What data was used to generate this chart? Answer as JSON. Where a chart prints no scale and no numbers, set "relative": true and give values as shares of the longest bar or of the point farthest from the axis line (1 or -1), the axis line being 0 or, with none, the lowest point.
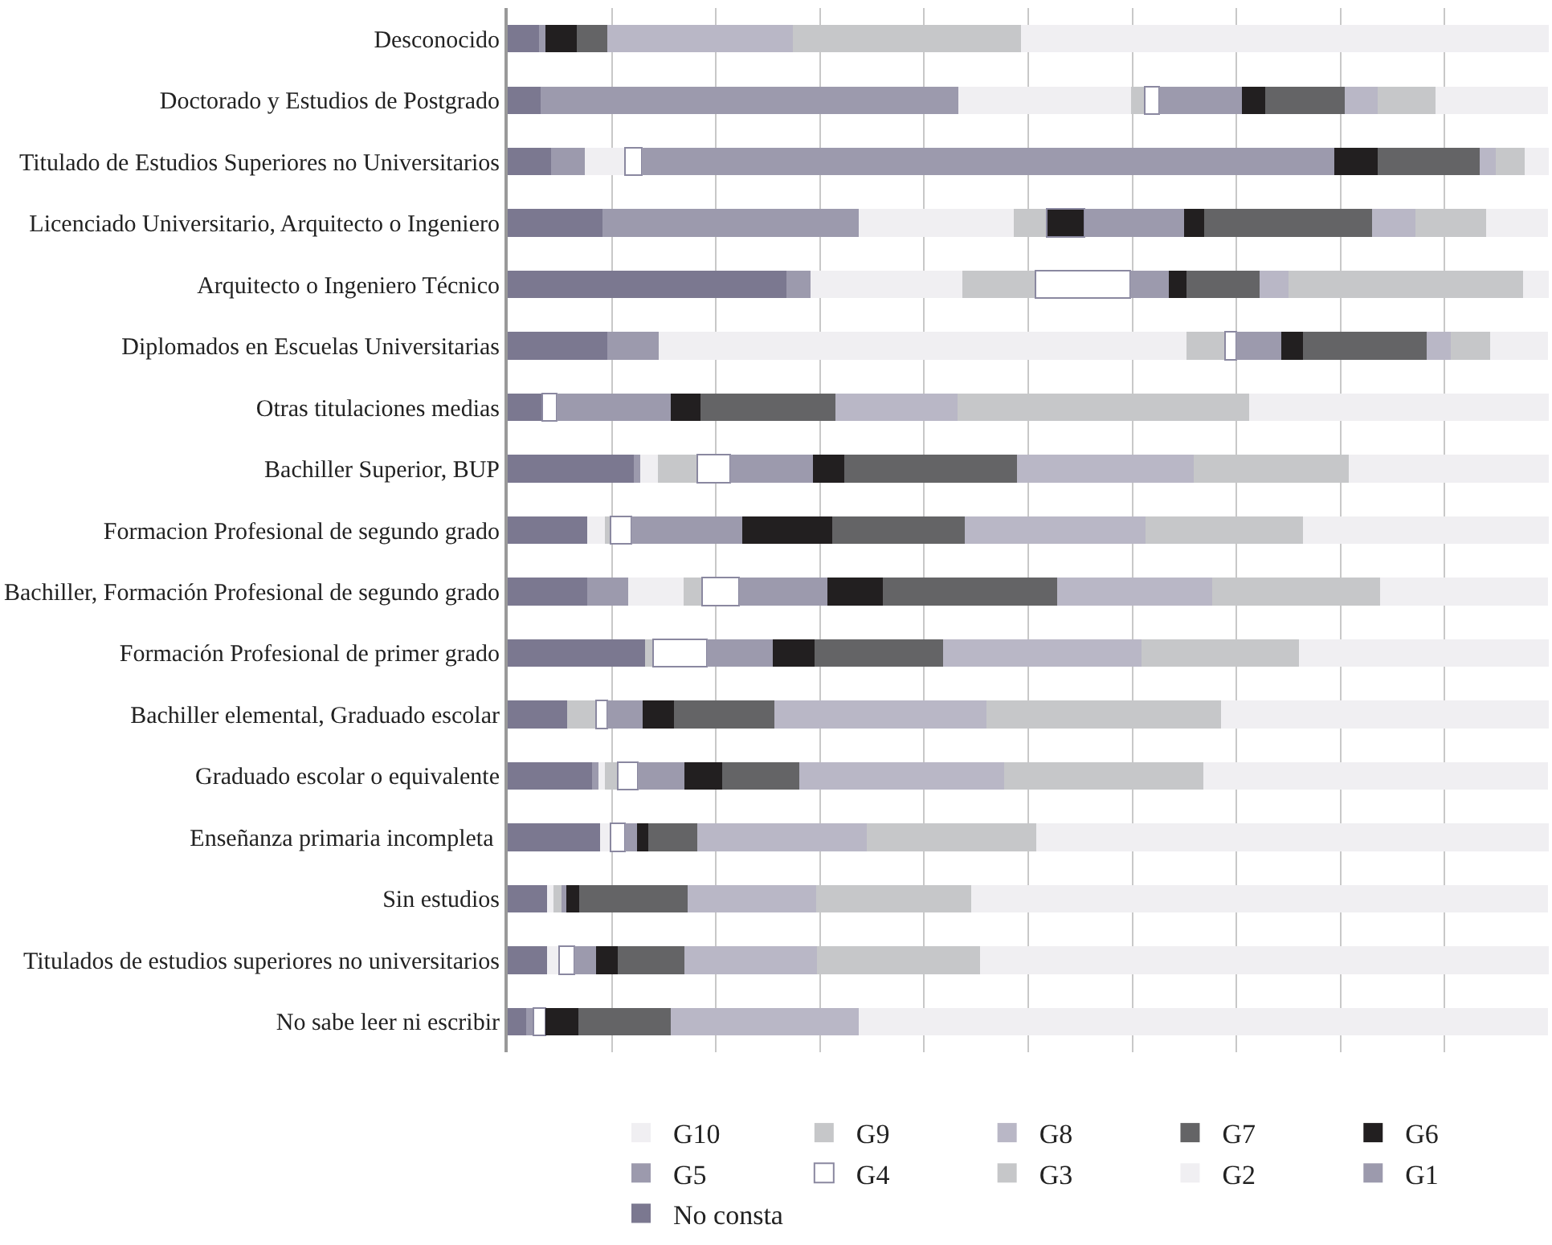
{
  "chart_data": {
    "type": "bar",
    "orientation": "horizontal",
    "stacked": true,
    "relative": true,
    "grid": "x",
    "legend": "bottom",
    "categories": [
      "Desconocido",
      "Doctorado y Estudios de Postgrado",
      "Titulado de Estudios Superiores no Universitarios",
      "Licenciado Universitario, Arquitecto o Ingeniero",
      "Arquitecto o Ingeniero Técnico",
      "Diplomados en Escuelas Universitarias",
      "Otras titulaciones medias",
      "Bachiller Superior, BUP",
      "Formacion Profesional de segundo grado",
      "Bachiller, Formación Profesional de segundo grado",
      "Formación Profesional de primer grado",
      "Bachiller elemental, Graduado escolar",
      "Graduado escolar o equivalente",
      "Enseñanza primaria incompleta ",
      "Sin estudios",
      "Titulados de estudios superiores no universitarios",
      "No sabe leer ni escribir"
    ],
    "series": [
      {
        "name": "No consta",
        "color": "#7b7890",
        "values": [
          0.03,
          0.032,
          0.042,
          0.091,
          0.268,
          0.096,
          0.033,
          0.121,
          0.076,
          0.076,
          0.132,
          0.057,
          0.081,
          0.089,
          0.038,
          0.038,
          0.018
        ]
      },
      {
        "name": "G1",
        "color": "#9c9aad",
        "values": [
          0.006,
          0.401,
          0.032,
          0.246,
          0.023,
          0.049,
          null,
          0.006,
          null,
          0.04,
          null,
          null,
          0.006,
          null,
          null,
          null,
          0.007
        ]
      },
      {
        "name": "G2",
        "color": "#f0eff2",
        "values": [
          null,
          0.166,
          0.039,
          0.149,
          0.146,
          0.507,
          null,
          0.017,
          0.017,
          0.053,
          null,
          null,
          0.006,
          0.01,
          0.006,
          0.011,
          null
        ]
      },
      {
        "name": "G3",
        "color": "#c6c7c9",
        "values": [
          null,
          0.013,
          null,
          0.032,
          0.07,
          0.037,
          null,
          0.038,
          0.006,
          0.018,
          0.008,
          0.028,
          0.013,
          null,
          0.008,
          null,
          null
        ]
      },
      {
        "name": "G4",
        "color": "#ffffff",
        "colors": [
          "#ffffff",
          "#ffffff",
          "#ffffff",
          "#221f20",
          "#ffffff",
          "#ffffff",
          "#ffffff",
          "#ffffff",
          "#ffffff",
          "#ffffff",
          "#ffffff",
          "#ffffff",
          "#ffffff",
          "#ffffff",
          "#ffffff",
          "#ffffff",
          "#ffffff"
        ],
        "values": [
          null,
          0.014,
          0.016,
          0.036,
          0.091,
          0.011,
          0.014,
          0.032,
          0.02,
          0.035,
          0.051,
          0.011,
          0.019,
          0.014,
          null,
          0.015,
          0.011
        ]
      },
      {
        "name": "G5",
        "color": "#9c9aad",
        "values": [
          null,
          0.079,
          0.665,
          0.096,
          0.037,
          0.043,
          0.11,
          0.079,
          0.106,
          0.085,
          0.064,
          0.034,
          0.045,
          0.011,
          0.004,
          0.021,
          null
        ]
      },
      {
        "name": "G6",
        "color": "#221f20",
        "values": [
          0.03,
          0.023,
          0.042,
          0.019,
          0.017,
          0.021,
          0.028,
          0.03,
          0.087,
          0.053,
          0.04,
          0.03,
          0.036,
          0.011,
          0.013,
          0.021,
          0.032
        ]
      },
      {
        "name": "G7",
        "color": "#646466",
        "values": [
          0.03,
          0.076,
          0.098,
          0.161,
          0.07,
          0.119,
          0.13,
          0.166,
          0.127,
          0.168,
          0.123,
          0.096,
          0.074,
          0.047,
          0.104,
          0.064,
          0.089
        ]
      },
      {
        "name": "G8",
        "color": "#b9b7c6",
        "values": [
          0.178,
          0.032,
          0.015,
          0.042,
          0.028,
          0.023,
          0.117,
          0.17,
          0.174,
          0.149,
          0.191,
          0.204,
          0.197,
          0.163,
          0.123,
          0.127,
          0.18
        ]
      },
      {
        "name": "G9",
        "color": "#c6c7c9",
        "values": [
          0.219,
          0.055,
          0.028,
          0.068,
          0.225,
          0.038,
          0.28,
          0.149,
          0.151,
          0.161,
          0.151,
          0.225,
          0.191,
          0.163,
          0.149,
          0.157,
          null
        ]
      },
      {
        "name": "G10",
        "color": "#f0eff2",
        "values": [
          0.507,
          0.108,
          0.023,
          0.059,
          0.025,
          0.055,
          0.288,
          0.192,
          0.236,
          0.161,
          0.24,
          0.315,
          0.331,
          0.492,
          0.554,
          0.546,
          0.662
        ]
      }
    ]
  }
}
